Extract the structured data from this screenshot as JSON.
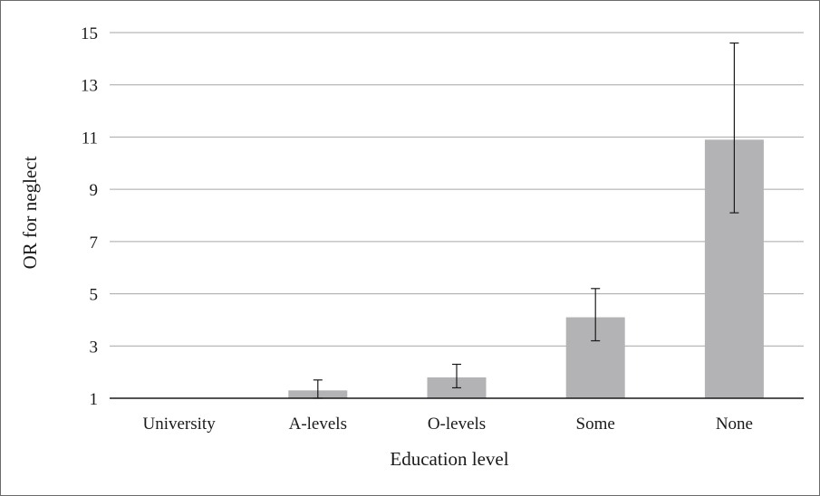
{
  "chart_data": {
    "type": "bar",
    "xlabel": "Education level",
    "ylabel": "OR for neglect",
    "categories": [
      "University",
      "A-levels",
      "O-levels",
      "Some",
      "None"
    ],
    "values": [
      1.0,
      1.3,
      1.8,
      4.1,
      10.9
    ],
    "error_low": [
      1.0,
      1.0,
      1.4,
      3.2,
      8.1
    ],
    "error_high": [
      1.0,
      1.7,
      2.3,
      5.2,
      14.6
    ],
    "ylim": [
      1,
      15
    ],
    "yticks": [
      "1",
      "3",
      "5",
      "7",
      "9",
      "11",
      "13",
      "15"
    ],
    "grid": true,
    "legend": "none",
    "colors": {
      "bar": "#b3b3b5",
      "grid": "#a6a6a6",
      "error": "#1a1a1a"
    }
  }
}
